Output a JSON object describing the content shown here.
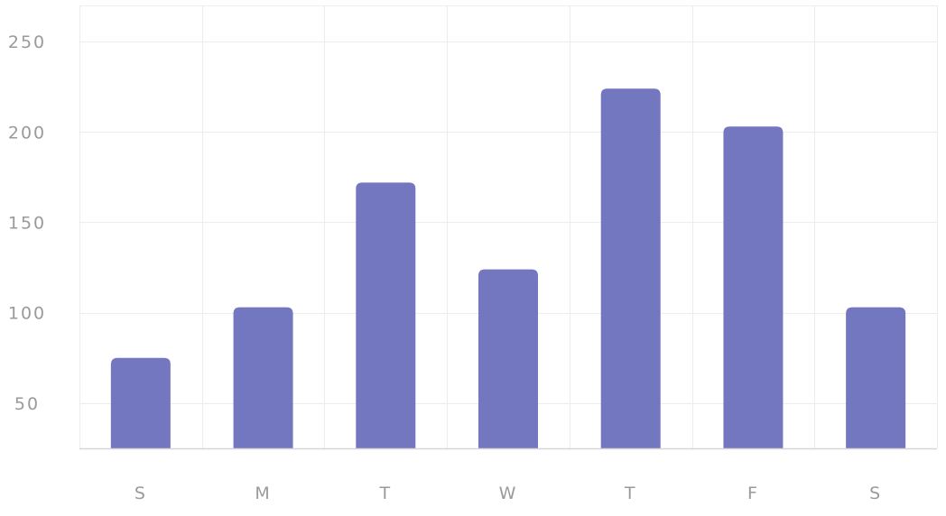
{
  "chart_data": {
    "type": "bar",
    "title": "",
    "xlabel": "",
    "ylabel": "",
    "categories": [
      "S",
      "M",
      "T",
      "W",
      "T",
      "F",
      "S"
    ],
    "values": [
      75,
      103,
      172,
      124,
      224,
      203,
      103
    ],
    "ylim": [
      25,
      270
    ],
    "yticks": [
      "50",
      "100",
      "150",
      "200",
      "250"
    ],
    "ytick_values": [
      50,
      100,
      150,
      200,
      250
    ],
    "grid": true,
    "legend": "none",
    "colors": {
      "bar": "#7377c0",
      "grid": "#ececec",
      "axis": "#d6d6d6",
      "tick_text": "#9a9a9a"
    }
  }
}
